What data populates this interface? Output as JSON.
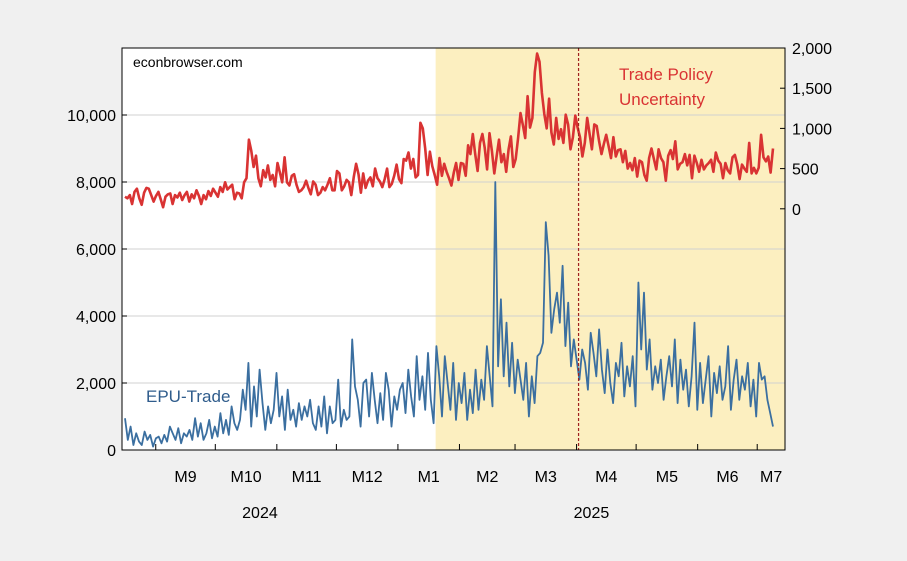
{
  "watermark": "econbrowser.com",
  "chart_data": {
    "type": "line",
    "title": "",
    "x_tick_labels": [
      "M9",
      "M10",
      "M11",
      "M12",
      "M1",
      "M2",
      "M3",
      "M4",
      "M5",
      "M6",
      "M7"
    ],
    "year_labels": [
      "2024",
      "2025"
    ],
    "x_range": [
      "2024-08-15",
      "2025-07-15"
    ],
    "shaded_region": {
      "start": "2025-01-20",
      "end": "2025-07-15",
      "color": "#fcefc0"
    },
    "vertical_line": {
      "date": "2025-04-02",
      "color": "#a02020",
      "style": "dashed"
    },
    "left_axis": {
      "ylim": [
        0,
        12000
      ],
      "ticks": [
        "0",
        "2,000",
        "4,000",
        "6,000",
        "8,000",
        "10,000"
      ]
    },
    "right_axis": {
      "ylim": [
        -3000,
        2000
      ],
      "ticks": [
        "0",
        "500",
        "1,000",
        "1,500",
        "2,000"
      ]
    },
    "grid": true,
    "series": [
      {
        "name": "EPU-Trade",
        "axis": "left",
        "color": "#3b6fa0",
        "label_position": "lower-left",
        "values": [
          950,
          300,
          700,
          150,
          500,
          250,
          150,
          550,
          300,
          450,
          100,
          350,
          400,
          200,
          450,
          250,
          700,
          500,
          300,
          650,
          200,
          500,
          400,
          600,
          300,
          950,
          400,
          800,
          300,
          500,
          900,
          350,
          700,
          400,
          1100,
          500,
          900,
          450,
          1300,
          800,
          600,
          900,
          1800,
          1200,
          2600,
          700,
          1900,
          1000,
          2400,
          1400,
          600,
          1300,
          800,
          1200,
          2300,
          1000,
          1600,
          600,
          1800,
          900,
          1200,
          700,
          1400,
          900,
          1300,
          1000,
          1500,
          800,
          600,
          1300,
          700,
          1600,
          500,
          1300,
          800,
          900,
          2100,
          700,
          1200,
          900,
          1000,
          3300,
          1900,
          1500,
          700,
          2000,
          2100,
          1000,
          2300,
          1500,
          800,
          1700,
          900,
          2300,
          1800,
          700,
          1600,
          1200,
          1800,
          2000,
          1100,
          2400,
          1600,
          1000,
          2800,
          1500,
          2200,
          1200,
          2900,
          1500,
          800,
          3100,
          2200,
          1000,
          2800,
          2000,
          1200,
          2600,
          900,
          2000,
          1400,
          2300,
          900,
          1800,
          1100,
          2400,
          1200,
          2100,
          1500,
          3100,
          2200,
          1300,
          8000,
          2500,
          4500,
          2200,
          3800,
          1900,
          3200,
          1700,
          2700,
          2100,
          1500,
          2600,
          1000,
          2200,
          1400,
          2800,
          2900,
          3200,
          6800,
          5800,
          3500,
          4200,
          4700,
          3800,
          5500,
          3100,
          4400,
          2500,
          3300,
          2700,
          2100,
          3000,
          2600,
          1800,
          3500,
          2900,
          2200,
          3600,
          2400,
          1700,
          3000,
          2000,
          1400,
          2600,
          2200,
          3200,
          1600,
          2500,
          1900,
          2800,
          1300,
          5000,
          3000,
          4700,
          2400,
          3300,
          1800,
          2500,
          2000,
          2700,
          1500,
          2200,
          2800,
          1900,
          3300,
          1400,
          2700,
          1800,
          2400,
          1300,
          2200,
          3800,
          1200,
          2600,
          1400,
          2100,
          2800,
          1000,
          2300,
          1700,
          2500,
          1500,
          1900,
          3100,
          1200,
          2100,
          2700,
          1500,
          2200,
          1800,
          2600,
          1300,
          2100,
          1000,
          2600,
          2100,
          2200,
          1500,
          1100,
          700
        ]
      },
      {
        "name": "Trade Policy Uncertainty",
        "axis": "right",
        "color": "#d93333",
        "label_position": "top-right",
        "values": [
          150,
          130,
          170,
          60,
          210,
          250,
          130,
          50,
          200,
          260,
          250,
          170,
          90,
          160,
          210,
          120,
          20,
          150,
          180,
          190,
          60,
          170,
          140,
          200,
          110,
          170,
          210,
          90,
          180,
          130,
          230,
          160,
          60,
          170,
          120,
          220,
          160,
          250,
          200,
          150,
          270,
          210,
          330,
          240,
          270,
          300,
          120,
          200,
          190,
          130,
          330,
          380,
          860,
          720,
          520,
          660,
          380,
          280,
          480,
          390,
          540,
          360,
          420,
          280,
          570,
          450,
          330,
          640,
          330,
          290,
          410,
          430,
          300,
          210,
          230,
          270,
          350,
          260,
          180,
          340,
          300,
          170,
          200,
          270,
          230,
          300,
          380,
          230,
          230,
          470,
          440,
          230,
          280,
          360,
          330,
          170,
          390,
          560,
          430,
          200,
          440,
          260,
          350,
          390,
          280,
          500,
          380,
          340,
          270,
          370,
          500,
          270,
          310,
          410,
          550,
          370,
          320,
          620,
          600,
          700,
          500,
          620,
          390,
          420,
          1070,
          1000,
          750,
          420,
          710,
          530,
          420,
          300,
          630,
          410,
          560,
          460,
          380,
          290,
          450,
          570,
          360,
          570,
          560,
          410,
          790,
          680,
          930,
          680,
          470,
          820,
          930,
          760,
          490,
          940,
          720,
          440,
          650,
          860,
          580,
          680,
          460,
          740,
          900,
          520,
          620,
          880,
          1190,
          1040,
          880,
          1400,
          1010,
          1130,
          1700,
          1930,
          1830,
          1440,
          1180,
          1000,
          1370,
          950,
          800,
          1130,
          870,
          990,
          820,
          1170,
          1050,
          740,
          890,
          1160,
          1010,
          890,
          650,
          820,
          1130,
          930,
          740,
          1050,
          1030,
          840,
          680,
          810,
          920,
          780,
          630,
          890,
          650,
          730,
          740,
          580,
          720,
          500,
          570,
          480,
          630,
          400,
          600,
          580,
          420,
          350,
          630,
          750,
          620,
          490,
          740,
          630,
          580,
          350,
          660,
          730,
          620,
          840,
          490,
          560,
          580,
          680,
          540,
          670,
          380,
          660,
          570,
          460,
          610,
          490,
          540,
          570,
          610,
          460,
          700,
          600,
          560,
          380,
          570,
          480,
          440,
          640,
          670,
          550,
          370,
          550,
          500,
          460,
          820,
          440,
          510,
          440,
          510,
          920,
          640,
          590,
          650,
          450,
          750
        ]
      }
    ]
  }
}
